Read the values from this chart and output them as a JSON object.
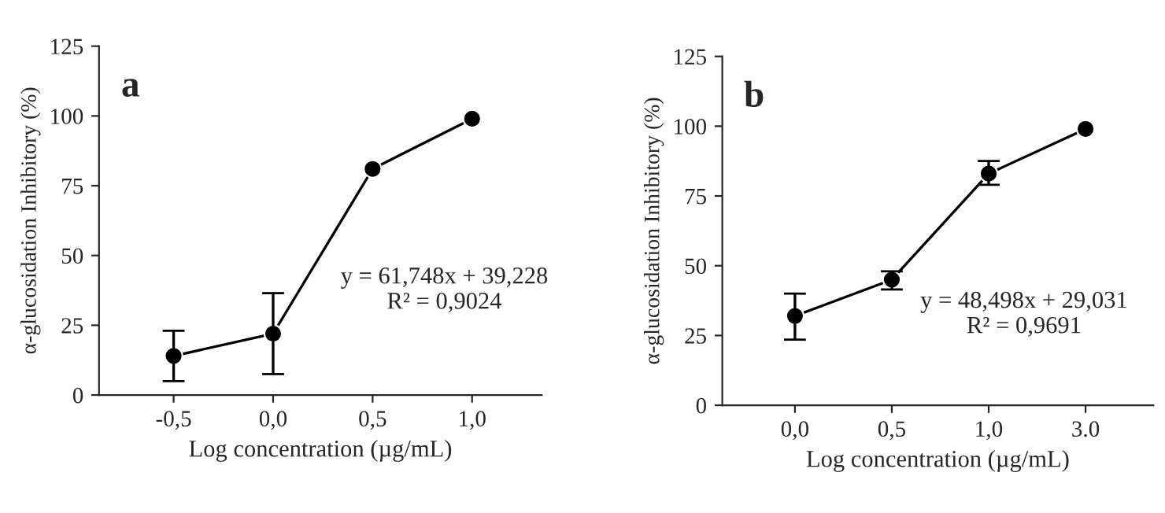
{
  "chart_data": [
    {
      "type": "line",
      "categories": [
        "-0,5",
        "0,0",
        "0,5",
        "1,0"
      ],
      "series": [
        {
          "color": "#000000",
          "values": [
            14,
            22,
            81,
            99
          ],
          "errors": [
            [
              5,
              23
            ],
            [
              7.5,
              36.5
            ],
            null,
            null
          ]
        }
      ],
      "xlabel": "Log concentration (µg/mL)",
      "ylabel": "α-glucosidation Inhibitory (%)",
      "ylim": [
        0,
        125
      ],
      "yticks": [
        0,
        25,
        50,
        75,
        100,
        125
      ],
      "marker": "circle",
      "line_style": "solid",
      "grid": false,
      "legend": false,
      "annotations": [
        "a",
        "y = 61,748x + 39,228\nR² = 0,9024"
      ]
    },
    {
      "type": "line",
      "categories": [
        "0,0",
        "0,5",
        "1,0",
        "3.0"
      ],
      "series": [
        {
          "color": "#000000",
          "values": [
            32,
            45,
            83,
            99
          ],
          "errors": [
            [
              23.5,
              40
            ],
            [
              41.5,
              48
            ],
            [
              79,
              87.5
            ],
            null
          ]
        }
      ],
      "xlabel": "Log concentration (µg/mL)",
      "ylabel": "α-glucosidation Inhibitory (%)",
      "ylim": [
        0,
        125
      ],
      "yticks": [
        0,
        25,
        50,
        75,
        100,
        125
      ],
      "marker": "circle",
      "line_style": "solid",
      "grid": false,
      "legend": false,
      "annotations": [
        "b",
        "y = 48,498x + 29,031\nR² = 0,9691"
      ]
    }
  ]
}
